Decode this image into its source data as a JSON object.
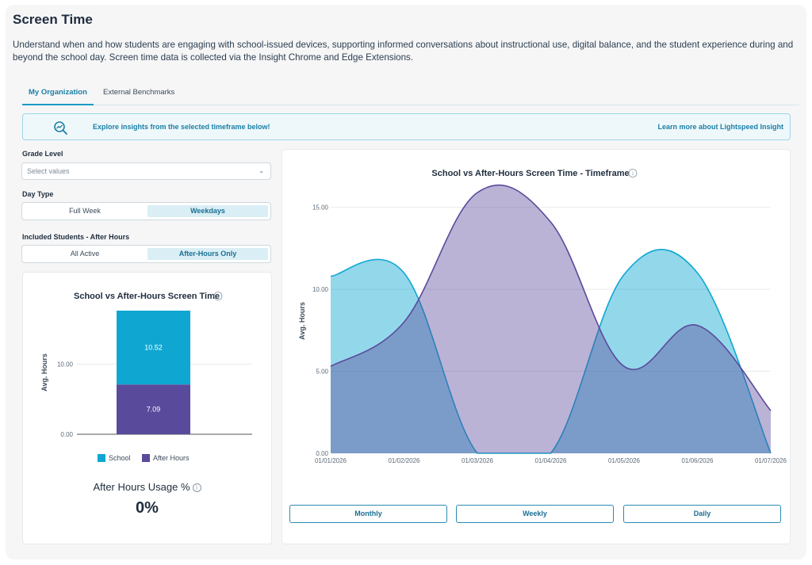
{
  "page": {
    "title": "Screen Time",
    "description": "Understand when and how students are engaging with school-issued devices, supporting informed conversations about instructional use, digital balance, and the student experience during and beyond the school day. Screen time data is collected via the Insight Chrome and Edge Extensions."
  },
  "tabs": [
    {
      "label": "My Organization",
      "active": true
    },
    {
      "label": "External Benchmarks",
      "active": false
    }
  ],
  "banner": {
    "icon": "search-chart-icon",
    "text": "Explore insights from the selected timeframe below!",
    "link": "Learn more about Lightspeed Insight"
  },
  "filters": {
    "grade_level": {
      "label": "Grade Level",
      "placeholder": "Select values"
    },
    "day_type": {
      "label": "Day Type",
      "options": [
        "Full Week",
        "Weekdays"
      ],
      "selected": "Weekdays"
    },
    "included_students": {
      "label": "Included Students - After Hours",
      "options": [
        "All Active",
        "After-Hours Only"
      ],
      "selected": "After-Hours Only"
    }
  },
  "usage": {
    "title": "After Hours Usage %",
    "value": "0%"
  },
  "period_buttons": [
    "Monthly",
    "Weekly",
    "Daily"
  ],
  "colors": {
    "school": "#0fa7d2",
    "after_hours": "#5a4a9c",
    "accent": "#1a7fa5"
  },
  "chart_data": [
    {
      "type": "bar",
      "stacked": true,
      "title": "School vs After-Hours Screen Time",
      "xlabel": "",
      "ylabel": "Avg. Hours",
      "ylim": [
        0,
        17.61
      ],
      "yticks": [
        "0.00",
        "10.00"
      ],
      "categories": [
        ""
      ],
      "series": [
        {
          "name": "After Hours",
          "values": [
            7.09
          ],
          "labels": [
            "7.09"
          ]
        },
        {
          "name": "School",
          "values": [
            10.52
          ],
          "labels": [
            "10.52"
          ]
        }
      ],
      "legend": [
        "School",
        "After Hours"
      ],
      "legend_position": "bottom",
      "grid": true
    },
    {
      "type": "area",
      "title": "School vs After-Hours Screen Time - Timeframe",
      "xlabel": "",
      "ylabel": "Avg. Hours",
      "ylim": [
        0,
        15.9
      ],
      "yticks": [
        "0.00",
        "5.00",
        "10.00",
        "15.00"
      ],
      "x": [
        "01/01/2026",
        "01/02/2026",
        "01/03/2026",
        "01/04/2026",
        "01/05/2026",
        "01/06/2026",
        "01/07/2026"
      ],
      "series": [
        {
          "name": "School",
          "values": [
            10.8,
            11.0,
            0.0,
            0.0,
            10.9,
            11.0,
            0.0
          ]
        },
        {
          "name": "After Hours",
          "values": [
            5.3,
            8.0,
            15.9,
            14.1,
            5.3,
            7.8,
            2.6
          ]
        }
      ],
      "grid": true
    }
  ]
}
